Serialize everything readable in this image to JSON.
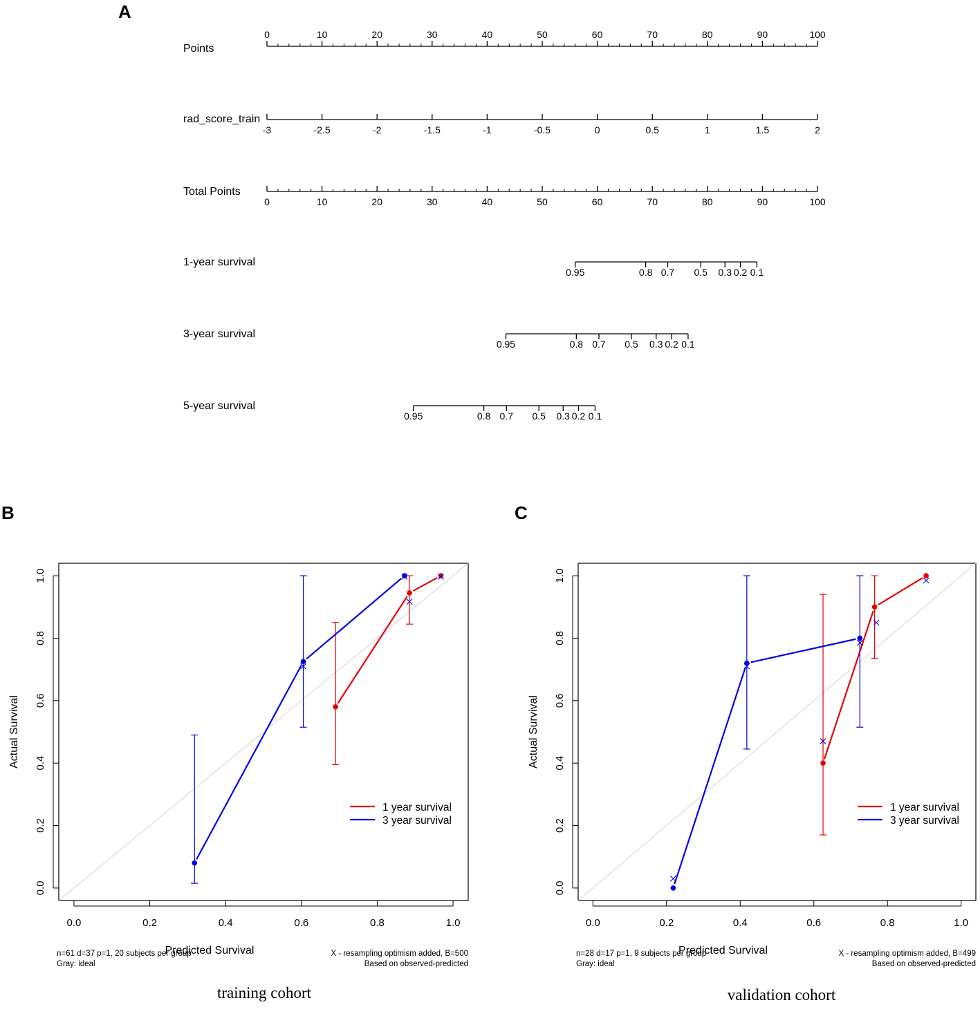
{
  "panels": {
    "a_label": "A",
    "b_label": "B",
    "c_label": "C"
  },
  "captions": {
    "training": "training cohort",
    "validation": "validation cohort"
  },
  "chart_data": [
    {
      "type": "nomogram",
      "panel": "A",
      "rows": [
        {
          "name": "Points",
          "ticks": [
            {
              "v": 0,
              "label": "0"
            },
            {
              "v": 10,
              "label": "10"
            },
            {
              "v": 20,
              "label": "20"
            },
            {
              "v": 30,
              "label": "30"
            },
            {
              "v": 40,
              "label": "40"
            },
            {
              "v": 50,
              "label": "50"
            },
            {
              "v": 60,
              "label": "60"
            },
            {
              "v": 70,
              "label": "70"
            },
            {
              "v": 80,
              "label": "80"
            },
            {
              "v": 90,
              "label": "90"
            },
            {
              "v": 100,
              "label": "100"
            }
          ],
          "minor_ticks": true,
          "labels_above": true
        },
        {
          "name": "rad_score_train",
          "ticks": [
            {
              "v": 0,
              "label": "-3"
            },
            {
              "v": 10,
              "label": "-2.5"
            },
            {
              "v": 20,
              "label": "-2"
            },
            {
              "v": 30,
              "label": "-1.5"
            },
            {
              "v": 40,
              "label": "-1"
            },
            {
              "v": 50,
              "label": "-0.5"
            },
            {
              "v": 60,
              "label": "0"
            },
            {
              "v": 70,
              "label": "0.5"
            },
            {
              "v": 80,
              "label": "1"
            },
            {
              "v": 90,
              "label": "1.5"
            },
            {
              "v": 100,
              "label": "2"
            }
          ],
          "minor_ticks": false,
          "labels_above": false
        },
        {
          "name": "Total Points",
          "ticks": [
            {
              "v": 0,
              "label": "0"
            },
            {
              "v": 10,
              "label": "10"
            },
            {
              "v": 20,
              "label": "20"
            },
            {
              "v": 30,
              "label": "30"
            },
            {
              "v": 40,
              "label": "40"
            },
            {
              "v": 50,
              "label": "50"
            },
            {
              "v": 60,
              "label": "60"
            },
            {
              "v": 70,
              "label": "70"
            },
            {
              "v": 80,
              "label": "80"
            },
            {
              "v": 90,
              "label": "90"
            },
            {
              "v": 100,
              "label": "100"
            }
          ],
          "minor_ticks": true,
          "labels_above": false
        },
        {
          "name": "1-year survival",
          "ticks": [
            {
              "v": 56,
              "label": "0.95"
            },
            {
              "v": 68.8,
              "label": "0.8"
            },
            {
              "v": 72.8,
              "label": "0.7"
            },
            {
              "v": 78.8,
              "label": "0.5"
            },
            {
              "v": 83.2,
              "label": "0.3"
            },
            {
              "v": 86,
              "label": "0.2"
            },
            {
              "v": 89,
              "label": "0.1"
            }
          ],
          "minor_ticks": false,
          "labels_above": false
        },
        {
          "name": "3-year survival",
          "ticks": [
            {
              "v": 43.4,
              "label": "0.95"
            },
            {
              "v": 56.2,
              "label": "0.8"
            },
            {
              "v": 60.3,
              "label": "0.7"
            },
            {
              "v": 66.2,
              "label": "0.5"
            },
            {
              "v": 70.7,
              "label": "0.3"
            },
            {
              "v": 73.5,
              "label": "0.2"
            },
            {
              "v": 76.5,
              "label": "0.1"
            }
          ],
          "minor_ticks": false,
          "labels_above": false
        },
        {
          "name": "5-year survival",
          "ticks": [
            {
              "v": 26.6,
              "label": "0.95"
            },
            {
              "v": 39.4,
              "label": "0.8"
            },
            {
              "v": 43.5,
              "label": "0.7"
            },
            {
              "v": 49.4,
              "label": "0.5"
            },
            {
              "v": 53.8,
              "label": "0.3"
            },
            {
              "v": 56.6,
              "label": "0.2"
            },
            {
              "v": 59.6,
              "label": "0.1"
            }
          ],
          "minor_ticks": false,
          "labels_above": false
        }
      ]
    },
    {
      "type": "line",
      "panel": "B",
      "xlabel": "Predicted Survival",
      "ylabel": "Actual Survival",
      "xlim": [
        -0.04,
        1.04
      ],
      "ylim": [
        -0.04,
        1.04
      ],
      "xticks": [
        "0.0",
        "0.2",
        "0.4",
        "0.6",
        "0.8",
        "1.0"
      ],
      "yticks": [
        "0.0",
        "0.2",
        "0.4",
        "0.6",
        "0.8",
        "1.0"
      ],
      "ideal_line": true,
      "legend": {
        "position": "right",
        "entries": [
          {
            "name": "1 year survival",
            "color": "#e60000"
          },
          {
            "name": "3 year survival",
            "color": "#0000e6"
          }
        ]
      },
      "footnote_left": [
        "n=61 d=37 p=1, 20 subjects per group",
        "Gray: ideal"
      ],
      "footnote_right": [
        "X - resampling optimism added, B=500",
        "Based on observed-predicted"
      ],
      "series": [
        {
          "name": "1 year survival",
          "color": "#e60000",
          "points": [
            {
              "x": 0.69,
              "y": 0.58,
              "lo": 0.395,
              "hi": 0.85
            },
            {
              "x": 0.885,
              "y": 0.945,
              "lo": 0.845,
              "hi": 1.0
            },
            {
              "x": 0.968,
              "y": 1.0
            }
          ],
          "corrected": [
            {
              "x": 0.885,
              "y": 0.917
            },
            {
              "x": 0.968,
              "y": 0.997
            }
          ]
        },
        {
          "name": "3 year survival",
          "color": "#0000e6",
          "points": [
            {
              "x": 0.318,
              "y": 0.08,
              "lo": 0.015,
              "hi": 0.49
            },
            {
              "x": 0.605,
              "y": 0.725,
              "lo": 0.515,
              "hi": 1.0
            },
            {
              "x": 0.872,
              "y": 1.0
            }
          ],
          "corrected": [
            {
              "x": 0.605,
              "y": 0.71
            },
            {
              "x": 0.872,
              "y": 0.997
            }
          ]
        }
      ]
    },
    {
      "type": "line",
      "panel": "C",
      "xlabel": "Predicted Survival",
      "ylabel": "Actual Survival",
      "xlim": [
        -0.04,
        1.04
      ],
      "ylim": [
        -0.04,
        1.04
      ],
      "xticks": [
        "0.0",
        "0.2",
        "0.4",
        "0.6",
        "0.8",
        "1.0"
      ],
      "yticks": [
        "0.0",
        "0.2",
        "0.4",
        "0.6",
        "0.8",
        "1.0"
      ],
      "ideal_line": true,
      "legend": {
        "position": "right",
        "entries": [
          {
            "name": "1 year survival",
            "color": "#e60000"
          },
          {
            "name": "3 year survival",
            "color": "#0000e6"
          }
        ]
      },
      "footnote_left": [
        "n=28 d=17 p=1, 9 subjects per group",
        "Gray: ideal"
      ],
      "footnote_right": [
        "X - resampling optimism added, B=499",
        "Based on observed-predicted"
      ],
      "series": [
        {
          "name": "1 year survival",
          "color": "#e60000",
          "points": [
            {
              "x": 0.625,
              "y": 0.4,
              "lo": 0.17,
              "hi": 0.94
            },
            {
              "x": 0.765,
              "y": 0.9,
              "lo": 0.735,
              "hi": 1.0
            },
            {
              "x": 0.905,
              "y": 1.0
            }
          ],
          "corrected": [
            {
              "x": 0.625,
              "y": 0.47
            },
            {
              "x": 0.77,
              "y": 0.85
            },
            {
              "x": 0.905,
              "y": 0.985
            }
          ]
        },
        {
          "name": "3 year survival",
          "color": "#0000e6",
          "points": [
            {
              "x": 0.218,
              "y": 0.0
            },
            {
              "x": 0.418,
              "y": 0.72,
              "lo": 0.445,
              "hi": 1.0
            },
            {
              "x": 0.725,
              "y": 0.8,
              "lo": 0.515,
              "hi": 1.0
            }
          ],
          "corrected": [
            {
              "x": 0.218,
              "y": 0.03
            },
            {
              "x": 0.418,
              "y": 0.71
            },
            {
              "x": 0.725,
              "y": 0.785
            }
          ]
        }
      ]
    }
  ]
}
